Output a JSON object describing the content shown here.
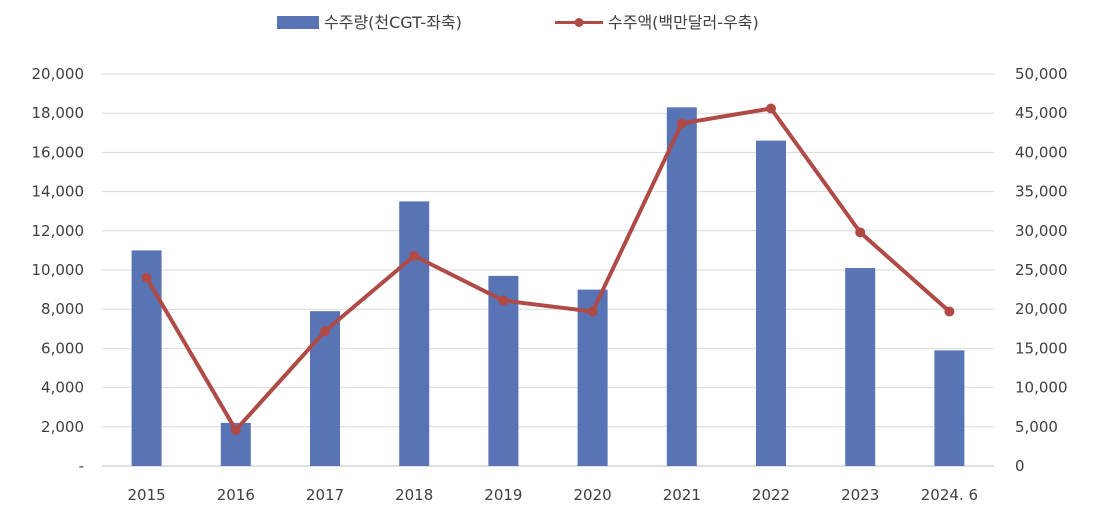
{
  "chart_data": {
    "type": "bar+line",
    "categories": [
      "2015",
      "2016",
      "2017",
      "2018",
      "2019",
      "2020",
      "2021",
      "2022",
      "2023",
      "2024. 6"
    ],
    "series": [
      {
        "name": "수주량(천CGT-좌축)",
        "type": "bar",
        "axis": "left",
        "values": [
          11000,
          2200,
          7900,
          13500,
          9700,
          9000,
          18300,
          16600,
          10100,
          5900
        ],
        "color": "#5874B5"
      },
      {
        "name": "수주액(백만달러-우축)",
        "type": "line",
        "axis": "right",
        "values": [
          24000,
          4600,
          17200,
          26800,
          21100,
          19700,
          43700,
          45600,
          29800,
          19700
        ],
        "color": "#B04A46"
      }
    ],
    "y_left": {
      "range": [
        0,
        20000
      ],
      "ticks": [
        0,
        2000,
        4000,
        6000,
        8000,
        10000,
        12000,
        14000,
        16000,
        18000,
        20000
      ],
      "tick_labels": [
        "-",
        "2,000",
        "4,000",
        "6,000",
        "8,000",
        "10,000",
        "12,000",
        "14,000",
        "16,000",
        "18,000",
        "20,000"
      ]
    },
    "y_right": {
      "range": [
        0,
        50000
      ],
      "ticks": [
        0,
        5000,
        10000,
        15000,
        20000,
        25000,
        30000,
        35000,
        40000,
        45000,
        50000
      ],
      "tick_labels": [
        "0",
        "5,000",
        "10,000",
        "15,000",
        "20,000",
        "25,000",
        "30,000",
        "35,000",
        "40,000",
        "45,000",
        "50,000"
      ]
    },
    "grid": true,
    "legend_position": "top-center",
    "title": "",
    "xlabel": "",
    "ylabel": ""
  }
}
